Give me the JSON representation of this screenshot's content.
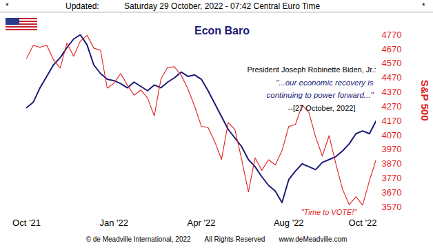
{
  "chart_data": {
    "type": "line",
    "title": "Econ Baro",
    "header": [
      "*",
      "Updated:",
      "Saturday 29 October, 2022 - 07:42 Central Euro Time",
      "*"
    ],
    "footer": [
      "© de Meadville International, 2022",
      "All Rights Reserved",
      "www.deMeadville.com"
    ],
    "quote": {
      "speaker": "President Joseph Robinette Biden, Jr.:",
      "lines": [
        "\"...our economic recovery is",
        "continuing to power forward...\""
      ],
      "date": "--[27 October, 2022]"
    },
    "annotation": "\"Time to VOTE!\"",
    "ylabel": "S&P 500",
    "categories": [
      "Oct '21",
      null,
      null,
      null,
      null,
      null,
      null,
      null,
      null,
      null,
      null,
      null,
      null,
      "Jan '22",
      null,
      null,
      null,
      null,
      null,
      null,
      null,
      null,
      null,
      null,
      null,
      null,
      "Apr '22",
      null,
      null,
      null,
      null,
      null,
      null,
      null,
      null,
      null,
      null,
      null,
      null,
      "Aug '22",
      null,
      null,
      null,
      null,
      null,
      null,
      null,
      null,
      null,
      null,
      "Oct '22",
      null,
      null
    ],
    "series": [
      {
        "name": "Econ Baro",
        "color": "#1a1a78",
        "values": [
          4262,
          4300,
          4400,
          4480,
          4560,
          4610,
          4680,
          4740,
          4770,
          4700,
          4560,
          4500,
          4460,
          4450,
          4430,
          4400,
          4440,
          4410,
          4380,
          4420,
          4400,
          4440,
          4470,
          4510,
          4480,
          4490,
          4460,
          4380,
          4290,
          4200,
          4110,
          4050,
          3990,
          3900,
          3850,
          3780,
          3720,
          3680,
          3600,
          3760,
          3820,
          3870,
          3850,
          3830,
          3880,
          3900,
          3920,
          3960,
          4010,
          4080,
          4100,
          4080,
          4170
        ]
      },
      {
        "name": "S&P 500",
        "color": "#e01e1e",
        "values": [
          4605,
          4697,
          4682,
          4698,
          4595,
          4538,
          4712,
          4620,
          4725,
          4766,
          4677,
          4662,
          4398,
          4432,
          4500,
          4419,
          4349,
          4385,
          4329,
          4204,
          4463,
          4543,
          4546,
          4488,
          4393,
          4272,
          4132,
          4123,
          4024,
          3901,
          4158,
          4109,
          3901,
          3675,
          3912,
          3825,
          3899,
          3863,
          3962,
          4130,
          4145,
          4280,
          4228,
          4058,
          3924,
          4067,
          3873,
          3693,
          3586,
          3640,
          3583,
          3752,
          3901
        ]
      }
    ],
    "ylim": [
      3570,
      4770
    ],
    "yticks": [
      4770,
      4670,
      4570,
      4470,
      4370,
      4270,
      4170,
      4070,
      3970,
      3870,
      3770,
      3670,
      3570
    ],
    "grid": false,
    "legend": "none"
  }
}
